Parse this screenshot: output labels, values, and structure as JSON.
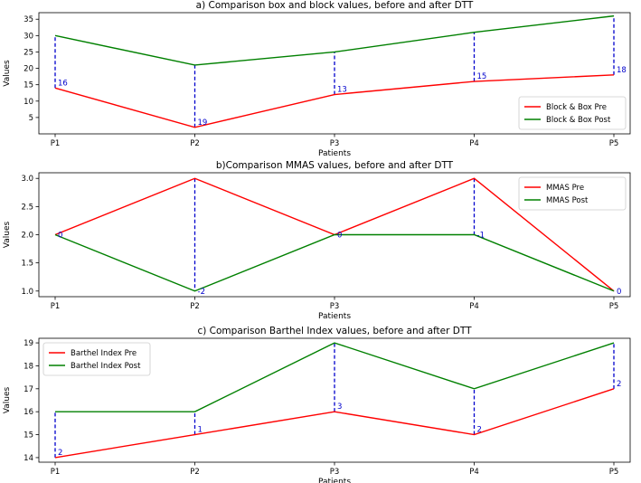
{
  "colors": {
    "pre": "#ff0000",
    "post": "#008000",
    "diff": "#0000cc",
    "frame": "#000000"
  },
  "chart_data": [
    {
      "type": "line",
      "title": "a) Comparison box and block values, before and after DTT",
      "xlabel": "Patients",
      "ylabel": "Values",
      "categories": [
        "P1",
        "P2",
        "P3",
        "P4",
        "P5"
      ],
      "ylim": [
        0,
        37
      ],
      "yticks": [
        5,
        10,
        15,
        20,
        25,
        30,
        35
      ],
      "legend_position": "bottom-right",
      "series": [
        {
          "name": "Block & Box Pre",
          "color": "#ff0000",
          "values": [
            14,
            2,
            12,
            16,
            18
          ]
        },
        {
          "name": "Block & Box Post",
          "color": "#008000",
          "values": [
            30,
            21,
            25,
            31,
            36
          ]
        }
      ],
      "differences": [
        "16",
        "19",
        "13",
        "15",
        "18"
      ]
    },
    {
      "type": "line",
      "title": "b)Comparison MMAS values, before and after DTT",
      "xlabel": "Patients",
      "ylabel": "Values",
      "categories": [
        "P1",
        "P2",
        "P3",
        "P4",
        "P5"
      ],
      "ylim": [
        0.9,
        3.1
      ],
      "yticks": [
        1.0,
        1.5,
        2.0,
        2.5,
        3.0
      ],
      "ytick_labels": [
        "1.0",
        "1.5",
        "2.0",
        "2.5",
        "3.0"
      ],
      "legend_position": "top-right",
      "series": [
        {
          "name": "MMAS Pre",
          "color": "#ff0000",
          "values": [
            2,
            3,
            2,
            3,
            1
          ]
        },
        {
          "name": "MMAS Post",
          "color": "#008000",
          "values": [
            2,
            1,
            2,
            2,
            1
          ]
        }
      ],
      "differences": [
        "0",
        "-2",
        "0",
        "-1",
        "0"
      ]
    },
    {
      "type": "line",
      "title": "c) Comparison Barthel Index values, before and after DTT",
      "xlabel": "Patients",
      "ylabel": "Values",
      "categories": [
        "P1",
        "P2",
        "P3",
        "P4",
        "P5"
      ],
      "ylim": [
        13.8,
        19.2
      ],
      "yticks": [
        14,
        15,
        16,
        17,
        18,
        19
      ],
      "legend_position": "top-left",
      "series": [
        {
          "name": "Barthel Index Pre",
          "color": "#ff0000",
          "values": [
            14,
            15,
            16,
            15,
            17
          ]
        },
        {
          "name": "Barthel Index Post",
          "color": "#008000",
          "values": [
            16,
            16,
            19,
            17,
            19
          ]
        }
      ],
      "differences": [
        "2",
        "1",
        "3",
        "2",
        "2"
      ]
    }
  ]
}
